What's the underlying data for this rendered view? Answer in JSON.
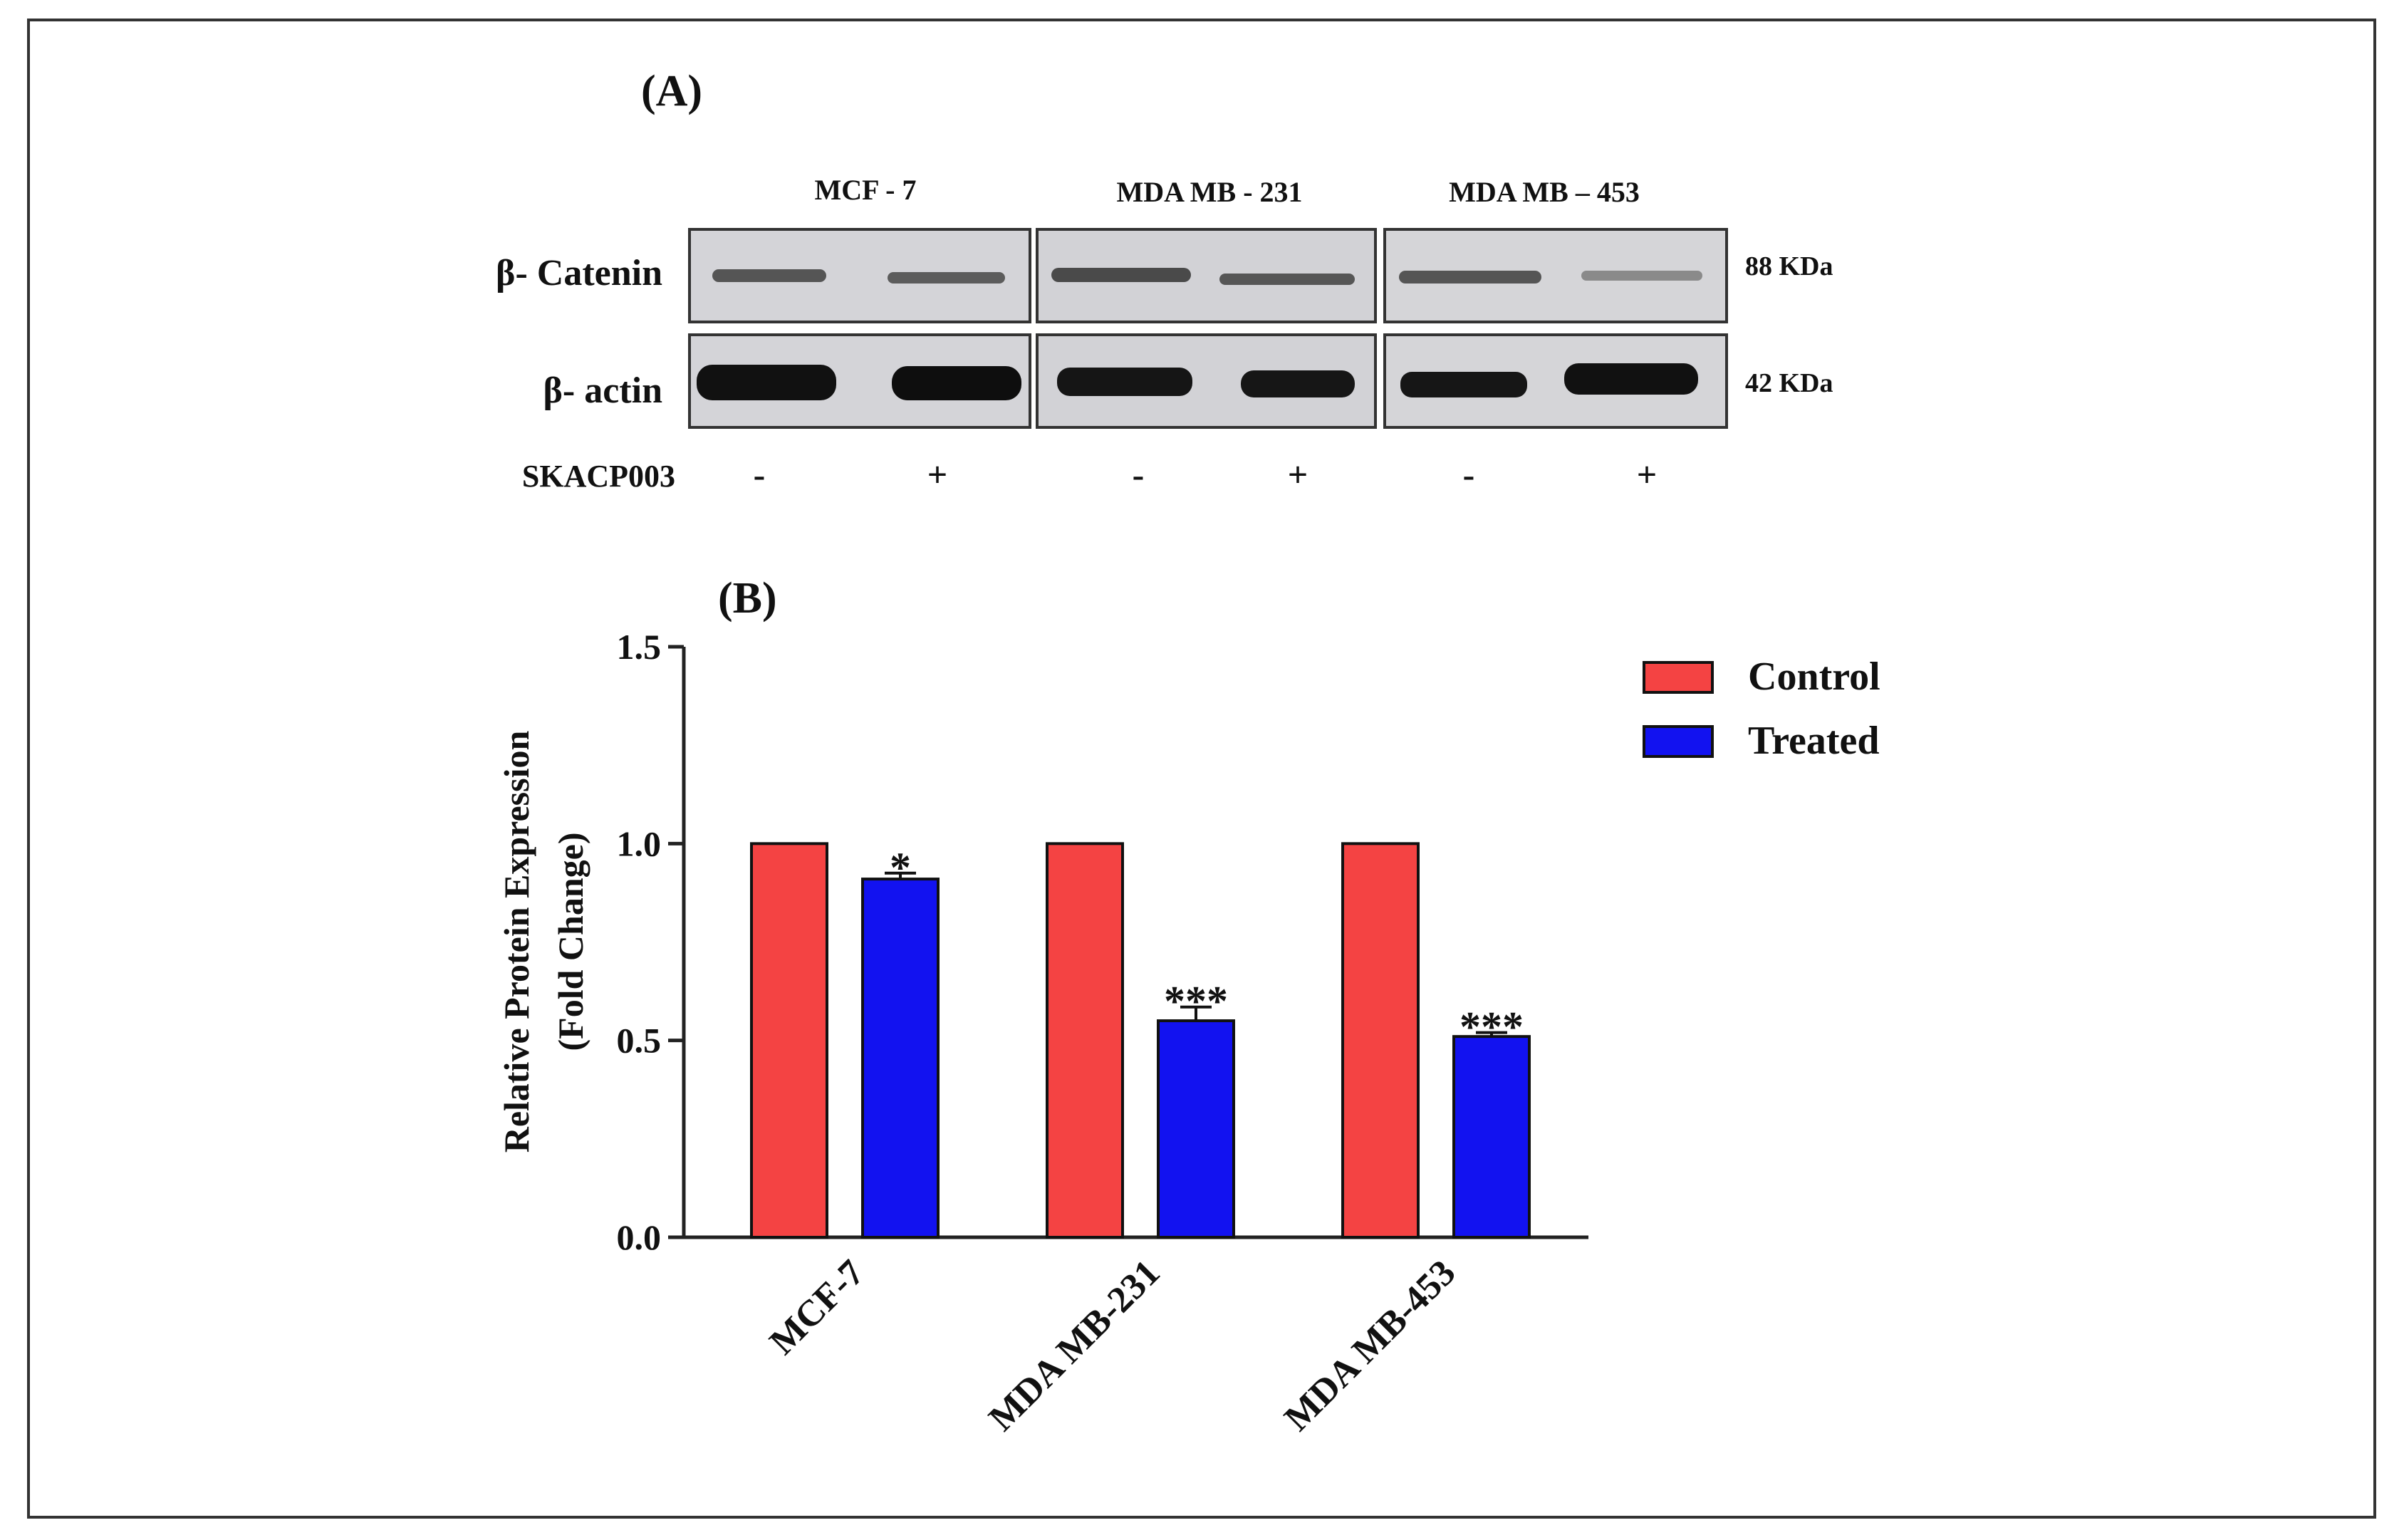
{
  "panel_a": {
    "label": "(A)",
    "cell_lines": [
      "MCF - 7",
      "MDA MB - 231",
      "MDA MB – 453"
    ],
    "rows": [
      {
        "name": "β- Catenin",
        "size": "88 KDa"
      },
      {
        "name": "β- actin",
        "size": "42 KDa"
      }
    ],
    "treatment": {
      "name": "SKACP003",
      "signs": [
        "-",
        "+",
        "-",
        "+",
        "-",
        "+"
      ]
    }
  },
  "colors": {
    "control": "#f44343",
    "treated": "#1212f0",
    "axis": "#222222"
  },
  "chart_data": {
    "type": "bar",
    "panel_label": "(B)",
    "title": "",
    "categories": [
      "MCF-7",
      "MDA MB-231",
      "MDA MB-453"
    ],
    "series": [
      {
        "name": "Control",
        "values": [
          1.0,
          1.0,
          1.0
        ],
        "errors": [
          0,
          0,
          0
        ],
        "significance": [
          "",
          "",
          ""
        ]
      },
      {
        "name": "Treated",
        "values": [
          0.91,
          0.55,
          0.51
        ],
        "errors": [
          0.015,
          0.035,
          0.01
        ],
        "significance": [
          "*",
          "***",
          "***"
        ]
      }
    ],
    "ylabel_line1": "Relative Protein Expression",
    "ylabel_line2": "(Fold Change)",
    "xlabel": "",
    "ylim": [
      0,
      1.5
    ],
    "yticks": [
      "0.0",
      "0.5",
      "1.0",
      "1.5"
    ],
    "legend_position": "top-right",
    "grid": false
  }
}
